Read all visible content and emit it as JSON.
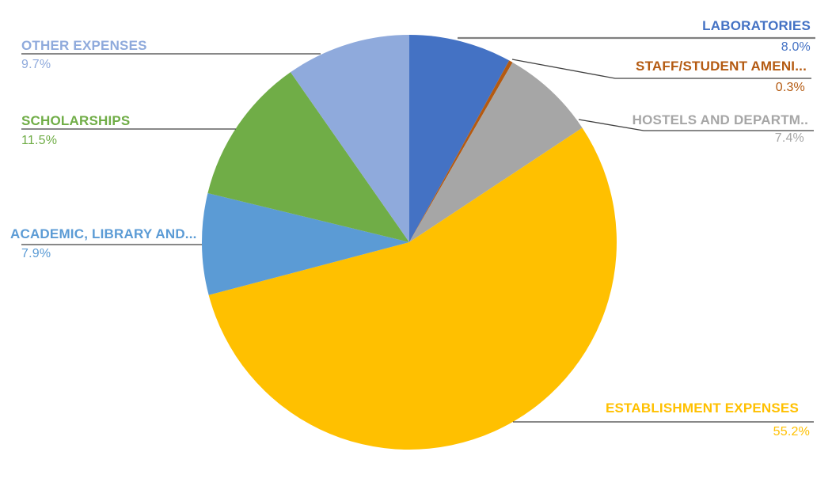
{
  "chart_data": {
    "type": "pie",
    "title": "",
    "unit": "percent",
    "start_angle_deg": 0,
    "direction": "clockwise",
    "legend": "none",
    "label_style": "outside-callout",
    "background_color": "#ffffff",
    "slices": [
      {
        "name": "LABORATORIES",
        "value": 8.0,
        "pct_label": "8.0%",
        "color": "#4472C4"
      },
      {
        "name": "STAFF/STUDENT AMENI...",
        "value": 0.3,
        "pct_label": "0.3%",
        "color": "#B45A11"
      },
      {
        "name": "HOSTELS AND DEPARTM..",
        "value": 7.4,
        "pct_label": "7.4%",
        "color": "#A6A6A6"
      },
      {
        "name": "ESTABLISHMENT EXPENSES",
        "value": 55.2,
        "pct_label": "55.2%",
        "color": "#FFC000"
      },
      {
        "name": "ACADEMIC, LIBRARY AND...",
        "value": 7.9,
        "pct_label": "7.9%",
        "color": "#5B9BD5"
      },
      {
        "name": "SCHOLARSHIPS",
        "value": 11.5,
        "pct_label": "11.5%",
        "color": "#70AD47"
      },
      {
        "name": "OTHER EXPENSES",
        "value": 9.7,
        "pct_label": "9.7%",
        "color": "#8FAADC"
      }
    ],
    "leader_line_colors": {
      "default": "#404040",
      "laboratories": "#7F7F7F"
    }
  }
}
